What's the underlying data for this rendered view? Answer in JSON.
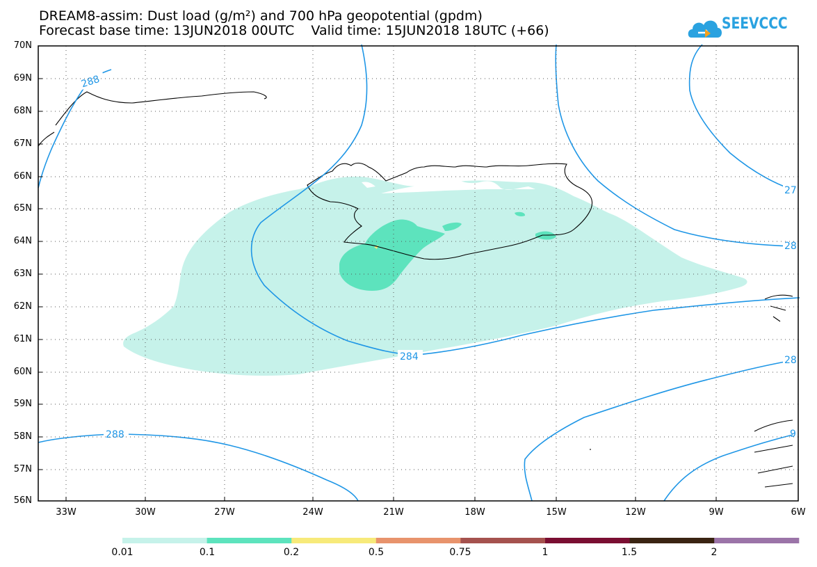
{
  "title": {
    "line1": "DREAM8-assim: Dust load (g/m²) and 700 hPa geopotential (gpdm)",
    "line2": "Forecast base time: 13JUN2018 00UTC    Valid time: 15JUN2018 18UTC (+66)"
  },
  "logo": {
    "text": "SEEVCCC",
    "icon": "cloud-icon",
    "color": "#2aa2e0"
  },
  "map": {
    "lat_labels": [
      "70N",
      "69N",
      "68N",
      "67N",
      "66N",
      "65N",
      "64N",
      "63N",
      "62N",
      "61N",
      "60N",
      "59N",
      "58N",
      "57N",
      "56N"
    ],
    "lon_labels": [
      "33W",
      "30W",
      "27W",
      "24W",
      "21W",
      "18W",
      "15W",
      "12W",
      "9W",
      "6W"
    ],
    "contour_labels": [
      "288",
      "284",
      "288",
      "27",
      "28",
      "28",
      "9"
    ],
    "contour_color": "#1e96e6"
  },
  "colorbar": {
    "labels": [
      "0.01",
      "0.1",
      "0.2",
      "0.5",
      "0.75",
      "1",
      "1.5",
      "2"
    ],
    "colors": [
      "#c6f2ea",
      "#5de3bd",
      "#f7ea7a",
      "#e8936c",
      "#a5524e",
      "#7a0e32",
      "#3a2412",
      "#9b74a8"
    ]
  }
}
